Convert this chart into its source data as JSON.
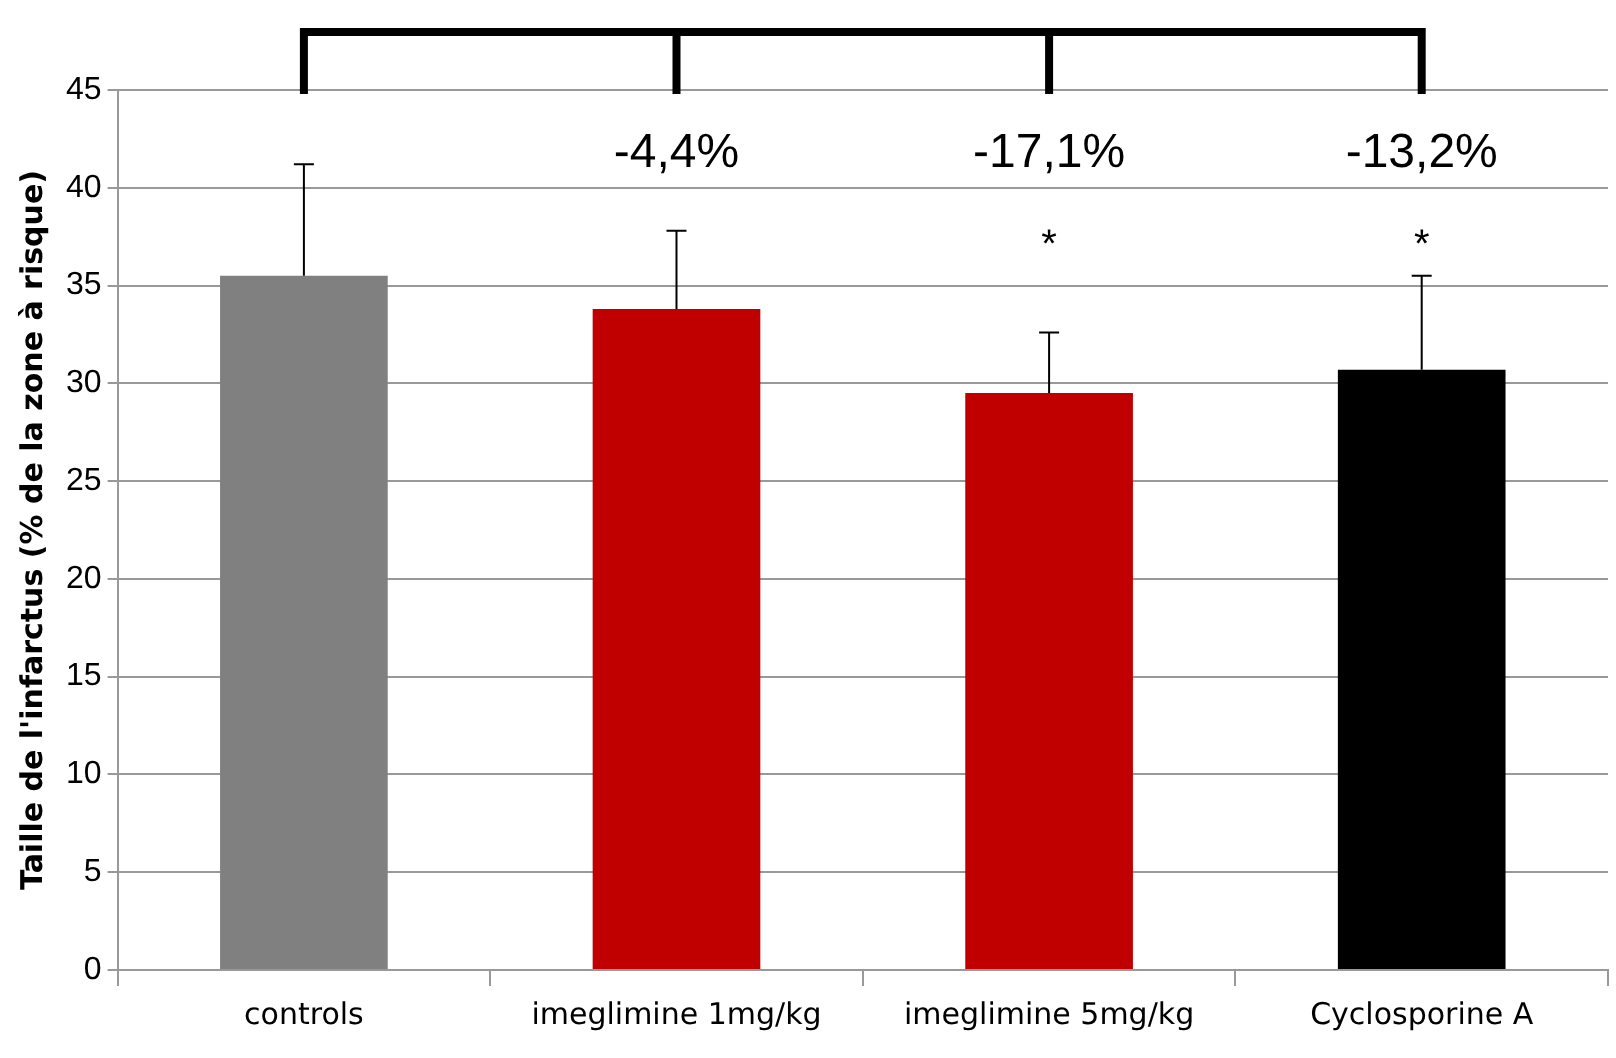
{
  "chart_data": {
    "type": "bar",
    "ylabel": "Taille de l'infarctus (% de la zone à risque)",
    "categories": [
      "controls",
      "imeglimine 1mg/kg",
      "imeglimine 5mg/kg",
      "Cyclosporine A"
    ],
    "values": [
      35.5,
      33.8,
      29.5,
      30.7
    ],
    "colors": [
      "#808080",
      "#c00000",
      "#c00000",
      "#000000"
    ],
    "errors": [
      [
        35.5,
        41.2
      ],
      [
        33.8,
        37.8
      ],
      [
        29.5,
        32.6
      ],
      [
        30.7,
        35.5
      ]
    ],
    "ylim": [
      0,
      45
    ],
    "yticks": [
      0,
      5,
      10,
      15,
      20,
      25,
      30,
      35,
      40,
      45
    ],
    "grid": "y",
    "legend": false,
    "annotations": [
      "-4,4%",
      "-17,1%",
      "-13,2%",
      "*",
      "*"
    ]
  }
}
